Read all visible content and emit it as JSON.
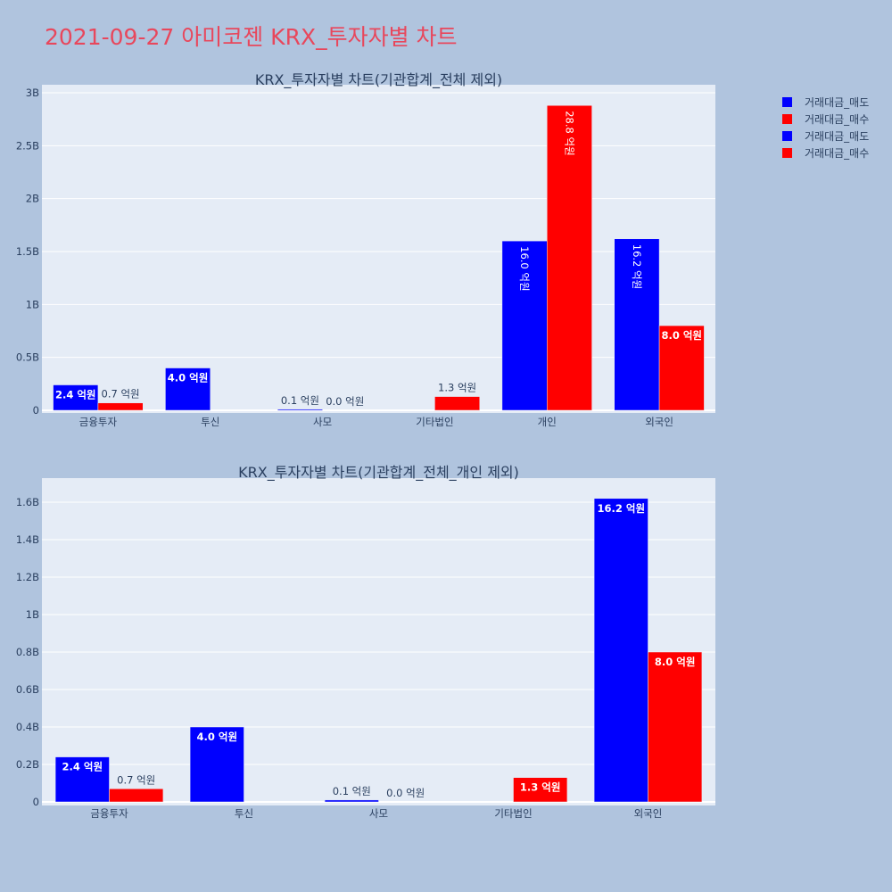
{
  "title": "2021-09-27 아미코젠 KRX_투자자별 차트",
  "legend": [
    {
      "name": "거래대금_매도",
      "color": "#0000ff"
    },
    {
      "name": "거래대금_매수",
      "color": "#ff0000"
    },
    {
      "name": "거래대금_매도",
      "color": "#0000ff"
    },
    {
      "name": "거래대금_매수",
      "color": "#ff0000"
    }
  ],
  "chart_data": [
    {
      "type": "bar",
      "title": "KRX_투자자별 차트(기관합계_전체 제외)",
      "categories": [
        "금융투자",
        "투신",
        "사모",
        "기타법인",
        "개인",
        "외국인"
      ],
      "series": [
        {
          "name": "거래대금_매도",
          "color": "#0000ff",
          "values": [
            240000000,
            400000000,
            10000000,
            0,
            1600000000,
            1620000000
          ],
          "labels": [
            "2.4 억원",
            "4.0 억원",
            "0.1 억원",
            "",
            "16.0 억원",
            "16.2 억원"
          ]
        },
        {
          "name": "거래대금_매수",
          "color": "#ff0000",
          "values": [
            70000000,
            0,
            0,
            130000000,
            2880000000,
            800000000
          ],
          "labels": [
            "0.7 억원",
            "",
            "0.0 억원",
            "1.3 억원",
            "28.8 억원",
            "8.0 억원"
          ]
        }
      ],
      "ylim": [
        0,
        3000000000
      ],
      "yticks": [
        0,
        500000000,
        1000000000,
        1500000000,
        2000000000,
        2500000000,
        3000000000
      ],
      "ytick_labels": [
        "0",
        "0.5B",
        "1B",
        "1.5B",
        "2B",
        "2.5B",
        "3B"
      ],
      "grid": true
    },
    {
      "type": "bar",
      "title": "KRX_투자자별 차트(기관합계_전체_개인 제외)",
      "categories": [
        "금융투자",
        "투신",
        "사모",
        "기타법인",
        "외국인"
      ],
      "series": [
        {
          "name": "거래대금_매도",
          "color": "#0000ff",
          "values": [
            240000000,
            400000000,
            10000000,
            0,
            1620000000
          ],
          "labels": [
            "2.4 억원",
            "4.0 억원",
            "0.1 억원",
            "",
            "16.2 억원"
          ]
        },
        {
          "name": "거래대금_매수",
          "color": "#ff0000",
          "values": [
            70000000,
            0,
            0,
            130000000,
            800000000
          ],
          "labels": [
            "0.7 억원",
            "",
            "0.0 억원",
            "1.3 억원",
            "8.0 억원"
          ]
        }
      ],
      "ylim": [
        0,
        1700000000
      ],
      "yticks": [
        0,
        200000000,
        400000000,
        600000000,
        800000000,
        1000000000,
        1200000000,
        1400000000,
        1600000000
      ],
      "ytick_labels": [
        "0",
        "0.2B",
        "0.4B",
        "0.6B",
        "0.8B",
        "1B",
        "1.2B",
        "1.4B",
        "1.6B"
      ],
      "grid": true
    }
  ]
}
